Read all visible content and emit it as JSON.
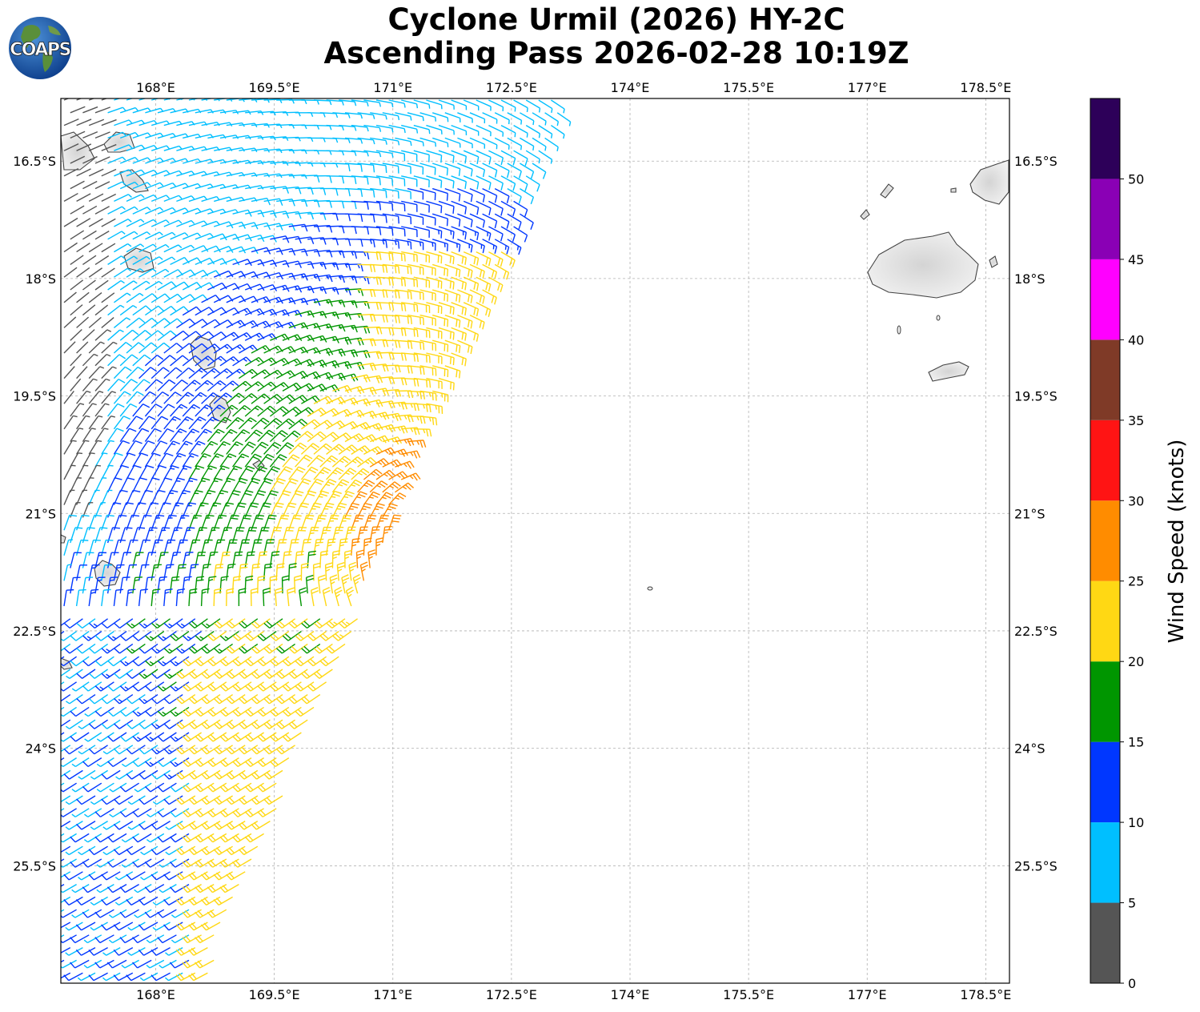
{
  "title_line1": "Cyclone Urmil (2026) HY-2C",
  "title_line2": "Ascending Pass 2026-02-28 10:19Z",
  "logo_text": "COAPS",
  "map": {
    "lon_range": [
      166.8,
      178.8
    ],
    "lat_range": [
      -27.0,
      -15.7
    ],
    "lon_ticks": [
      "168°E",
      "169.5°E",
      "171°E",
      "172.5°E",
      "174°E",
      "175.5°E",
      "177°E",
      "178.5°E"
    ],
    "lat_ticks": [
      "16.5°S",
      "18°S",
      "19.5°S",
      "21°S",
      "22.5°S",
      "24°S",
      "25.5°S"
    ],
    "gridlines": true,
    "gridline_style": "dashed",
    "land_fill": "#e8e8e8",
    "coastline_color": "#444444",
    "barb_type": "wind barbs (knots)",
    "storm_center_approx": {
      "lon": 171.7,
      "lat": -21.2
    }
  },
  "colorbar": {
    "label": "Wind Speed (knots)",
    "bins": [
      {
        "from": 0,
        "to": 5,
        "color": "#555555"
      },
      {
        "from": 5,
        "to": 10,
        "color": "#00bfff"
      },
      {
        "from": 10,
        "to": 15,
        "color": "#0037ff"
      },
      {
        "from": 15,
        "to": 20,
        "color": "#009600"
      },
      {
        "from": 20,
        "to": 25,
        "color": "#ffd814"
      },
      {
        "from": 25,
        "to": 30,
        "color": "#ff8c00"
      },
      {
        "from": 30,
        "to": 35,
        "color": "#ff1414"
      },
      {
        "from": 35,
        "to": 40,
        "color": "#7f3a27"
      },
      {
        "from": 40,
        "to": 45,
        "color": "#ff00ff"
      },
      {
        "from": 45,
        "to": 50,
        "color": "#8a00b5"
      },
      {
        "from": 50,
        "to": 55,
        "color": "#2d0059"
      }
    ],
    "ticks": [
      "0",
      "5",
      "10",
      "15",
      "20",
      "25",
      "30",
      "35",
      "40",
      "45",
      "50"
    ]
  }
}
